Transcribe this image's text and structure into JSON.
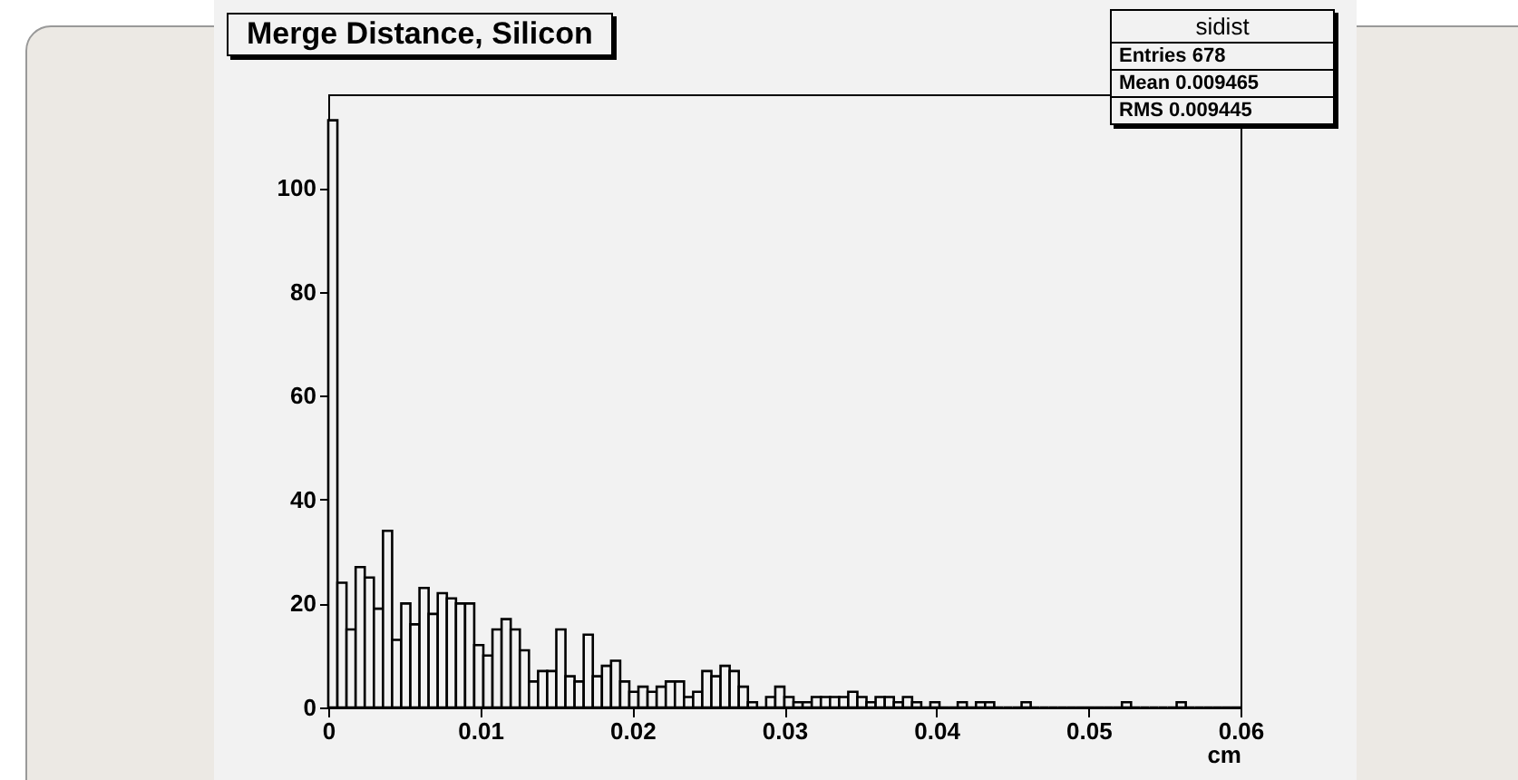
{
  "chart_data": {
    "type": "histogram",
    "title": "Merge Distance, Silicon",
    "xlabel": "cm",
    "color": "#000000",
    "bins": [
      0,
      0.0006,
      0.0012,
      0.0018,
      0.0024,
      0.003,
      0.0036,
      0.0042,
      0.0048,
      0.0054,
      0.006,
      0.0066,
      0.0072,
      0.0078,
      0.0084,
      0.009,
      0.0096,
      0.0102,
      0.0108,
      0.0114,
      0.012,
      0.0126,
      0.0132,
      0.0138,
      0.0144,
      0.015,
      0.0156,
      0.0162,
      0.0168,
      0.0174,
      0.018,
      0.0186,
      0.0192,
      0.0198,
      0.0204,
      0.021,
      0.0216,
      0.0222,
      0.0228,
      0.0234,
      0.024,
      0.0246,
      0.0252,
      0.0258,
      0.0264,
      0.027,
      0.0276,
      0.0282,
      0.0288,
      0.0294,
      0.03,
      0.0306,
      0.0312,
      0.0318,
      0.0324,
      0.033,
      0.0336,
      0.0342,
      0.0348,
      0.0354,
      0.036,
      0.0366,
      0.0372,
      0.0378,
      0.0384,
      0.039,
      0.0396,
      0.0402,
      0.0408,
      0.0414,
      0.042,
      0.0426,
      0.0432,
      0.0438,
      0.0444,
      0.045,
      0.0456,
      0.0462,
      0.0468,
      0.0474,
      0.048,
      0.0486,
      0.0492,
      0.0498,
      0.0504,
      0.051,
      0.0516,
      0.0522,
      0.0528,
      0.0534,
      0.054,
      0.0546,
      0.0552,
      0.0558,
      0.0564,
      0.057,
      0.0576,
      0.0582,
      0.0588,
      0.0594,
      0.06
    ],
    "values": [
      113,
      24,
      15,
      27,
      25,
      19,
      34,
      13,
      20,
      16,
      23,
      18,
      22,
      21,
      20,
      20,
      12,
      10,
      15,
      17,
      15,
      11,
      5,
      7,
      7,
      15,
      6,
      5,
      14,
      6,
      8,
      9,
      5,
      3,
      4,
      3,
      4,
      5,
      5,
      2,
      3,
      7,
      6,
      8,
      7,
      4,
      1,
      0,
      2,
      4,
      2,
      1,
      1,
      2,
      2,
      2,
      2,
      3,
      2,
      1,
      2,
      2,
      1,
      2,
      1,
      0,
      1,
      0,
      0,
      1,
      0,
      1,
      1,
      0,
      0,
      0,
      1,
      0,
      0,
      0,
      0,
      0,
      0,
      0,
      0,
      0,
      0,
      1,
      0,
      0,
      0,
      0,
      0,
      1,
      0,
      0,
      0,
      0,
      0,
      0
    ],
    "xlim": [
      0,
      0.06
    ],
    "xticks": [
      0,
      0.01,
      0.02,
      0.03,
      0.04,
      0.05,
      0.06
    ],
    "ylim": [
      0,
      118
    ],
    "yticks": [
      0,
      20,
      40,
      60,
      80,
      100
    ],
    "grid": false,
    "annotations": [
      "sidist",
      "Entries 678",
      "Mean 0.009465",
      "RMS 0.009445"
    ]
  }
}
